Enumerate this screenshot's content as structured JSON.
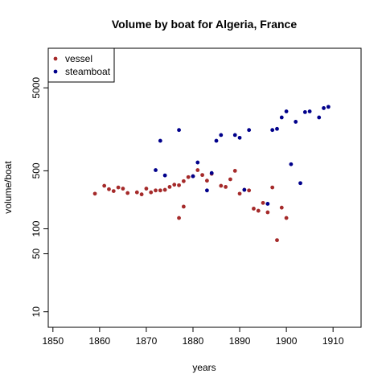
{
  "chart_data": {
    "type": "scatter",
    "title": "Volume by boat for Algeria, France",
    "xlabel": "years",
    "ylabel": "volume/boat",
    "xlim": [
      1849,
      1916
    ],
    "ylim": [
      6.5,
      15000
    ],
    "y_scale": "log",
    "x_ticks": [
      1850,
      1860,
      1870,
      1880,
      1890,
      1900,
      1910
    ],
    "y_ticks": [
      10,
      50,
      100,
      500,
      5000
    ],
    "grid": false,
    "legend_position": "top-left",
    "series": [
      {
        "name": "vessel",
        "color": "#a52a2a",
        "points": [
          [
            1859,
            265
          ],
          [
            1861,
            330
          ],
          [
            1862,
            300
          ],
          [
            1863,
            285
          ],
          [
            1864,
            315
          ],
          [
            1865,
            305
          ],
          [
            1866,
            270
          ],
          [
            1868,
            275
          ],
          [
            1869,
            260
          ],
          [
            1870,
            305
          ],
          [
            1871,
            275
          ],
          [
            1872,
            290
          ],
          [
            1873,
            290
          ],
          [
            1874,
            295
          ],
          [
            1875,
            320
          ],
          [
            1876,
            340
          ],
          [
            1877,
            335
          ],
          [
            1877,
            135
          ],
          [
            1878,
            375
          ],
          [
            1878,
            185
          ],
          [
            1879,
            420
          ],
          [
            1880,
            430
          ],
          [
            1881,
            510
          ],
          [
            1882,
            445
          ],
          [
            1883,
            380
          ],
          [
            1884,
            460
          ],
          [
            1886,
            330
          ],
          [
            1887,
            320
          ],
          [
            1888,
            395
          ],
          [
            1889,
            500
          ],
          [
            1890,
            265
          ],
          [
            1891,
            295
          ],
          [
            1892,
            290
          ],
          [
            1893,
            175
          ],
          [
            1894,
            165
          ],
          [
            1895,
            205
          ],
          [
            1896,
            158
          ],
          [
            1897,
            315
          ],
          [
            1898,
            73
          ],
          [
            1899,
            180
          ],
          [
            1900,
            135
          ]
        ]
      },
      {
        "name": "steamboat",
        "color": "#00008b",
        "points": [
          [
            1872,
            510
          ],
          [
            1873,
            1150
          ],
          [
            1874,
            440
          ],
          [
            1877,
            1550
          ],
          [
            1880,
            430
          ],
          [
            1881,
            630
          ],
          [
            1883,
            290
          ],
          [
            1884,
            470
          ],
          [
            1885,
            1150
          ],
          [
            1886,
            1350
          ],
          [
            1889,
            1350
          ],
          [
            1890,
            1250
          ],
          [
            1891,
            295
          ],
          [
            1892,
            1550
          ],
          [
            1896,
            200
          ],
          [
            1897,
            1550
          ],
          [
            1898,
            1600
          ],
          [
            1899,
            2200
          ],
          [
            1900,
            2600
          ],
          [
            1901,
            600
          ],
          [
            1902,
            1950
          ],
          [
            1903,
            355
          ],
          [
            1904,
            2550
          ],
          [
            1905,
            2600
          ],
          [
            1907,
            2200
          ],
          [
            1908,
            2850
          ],
          [
            1909,
            2950
          ]
        ]
      }
    ]
  }
}
